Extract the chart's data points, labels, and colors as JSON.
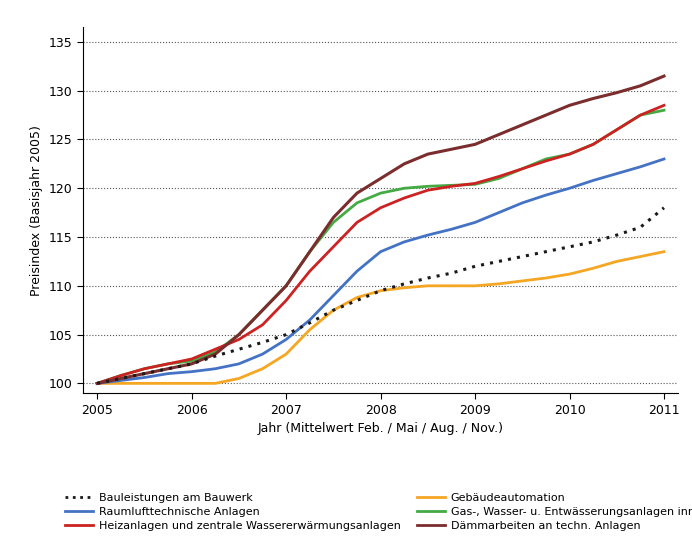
{
  "title": "",
  "xlabel": "Jahr (Mittelwert Feb. / Mai / Aug. / Nov.)",
  "ylabel": "Preisindex (Basisjahr 2005)",
  "xlim": [
    2004.85,
    2011.15
  ],
  "ylim": [
    99.0,
    136.5
  ],
  "yticks": [
    100,
    105,
    110,
    115,
    120,
    125,
    130,
    135
  ],
  "xticks": [
    2005,
    2006,
    2007,
    2008,
    2009,
    2010,
    2011
  ],
  "x": [
    2005.0,
    2005.25,
    2005.5,
    2005.75,
    2006.0,
    2006.25,
    2006.5,
    2006.75,
    2007.0,
    2007.25,
    2007.5,
    2007.75,
    2008.0,
    2008.25,
    2008.5,
    2008.75,
    2009.0,
    2009.25,
    2009.5,
    2009.75,
    2010.0,
    2010.25,
    2010.5,
    2010.75,
    2011.0
  ],
  "bauleistungen": [
    100.0,
    100.5,
    101.0,
    101.5,
    102.0,
    102.8,
    103.5,
    104.2,
    105.0,
    106.2,
    107.5,
    108.5,
    109.5,
    110.2,
    110.8,
    111.3,
    112.0,
    112.5,
    113.0,
    113.5,
    114.0,
    114.5,
    115.2,
    116.0,
    118.0
  ],
  "heizanlagen": [
    100.0,
    100.8,
    101.5,
    102.0,
    102.5,
    103.5,
    104.5,
    106.0,
    108.5,
    111.5,
    114.0,
    116.5,
    118.0,
    119.0,
    119.8,
    120.2,
    120.5,
    121.2,
    122.0,
    122.8,
    123.5,
    124.5,
    126.0,
    127.5,
    128.5
  ],
  "gas_wasser": [
    100.0,
    100.8,
    101.5,
    102.0,
    102.3,
    103.2,
    105.0,
    107.5,
    110.0,
    113.5,
    116.5,
    118.5,
    119.5,
    120.0,
    120.2,
    120.3,
    120.4,
    121.0,
    122.0,
    123.0,
    123.5,
    124.5,
    126.0,
    127.5,
    128.0
  ],
  "raumlufttechnik": [
    100.0,
    100.3,
    100.6,
    101.0,
    101.2,
    101.5,
    102.0,
    103.0,
    104.5,
    106.5,
    109.0,
    111.5,
    113.5,
    114.5,
    115.2,
    115.8,
    116.5,
    117.5,
    118.5,
    119.3,
    120.0,
    120.8,
    121.5,
    122.2,
    123.0
  ],
  "gebaudeautomation": [
    100.0,
    100.0,
    100.0,
    100.0,
    100.0,
    100.0,
    100.5,
    101.5,
    103.0,
    105.5,
    107.5,
    108.8,
    109.5,
    109.8,
    110.0,
    110.0,
    110.0,
    110.2,
    110.5,
    110.8,
    111.2,
    111.8,
    112.5,
    113.0,
    113.5
  ],
  "daemmarbeiten": [
    100.0,
    100.5,
    101.0,
    101.5,
    102.0,
    103.0,
    105.0,
    107.5,
    110.0,
    113.5,
    117.0,
    119.5,
    121.0,
    122.5,
    123.5,
    124.0,
    124.5,
    125.5,
    126.5,
    127.5,
    128.5,
    129.2,
    129.8,
    130.5,
    131.5
  ],
  "colors": {
    "bauleistungen": "#1a1a1a",
    "heizanlagen": "#cc2222",
    "gas_wasser": "#44aa44",
    "raumlufttechnik": "#4472c4",
    "gebaudeautomation": "#f5a623",
    "daemmarbeiten": "#7b2d2d"
  },
  "legend_labels": {
    "bauleistungen": "Bauleistungen am Bauwerk",
    "heizanlagen": "Heizanlagen und zentrale Wassererwärmungsanlagen",
    "gas_wasser": "Gas-, Wasser- u. Entwässerungsanlagen innerh. von Geb.",
    "raumlufttechnik": "Raumlufttechnische Anlagen",
    "gebaudeautomation": "Gebäudeautomation",
    "daemmarbeiten": "Dämmarbeiten an techn. Anlagen"
  },
  "figsize": [
    6.92,
    5.46
  ],
  "dpi": 100
}
